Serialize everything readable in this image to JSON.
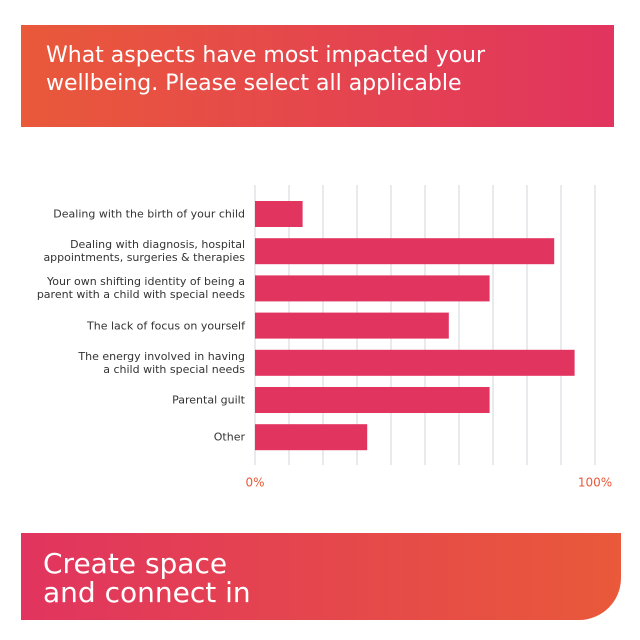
{
  "header": {
    "title": "What aspects have most impacted your\nwellbeing. Please select all applicable"
  },
  "chart_data": {
    "type": "hbar",
    "categories": [
      "Dealing with the birth of your child",
      "Dealing with diagnosis, hospital\nappointments, surgeries & therapies",
      "Your own shifting identity of being a\nparent with a child with special needs",
      "The lack of focus on yourself",
      "The energy involved in having\na child with special needs",
      "Parental guilt",
      "Other"
    ],
    "values": [
      14,
      88,
      69,
      57,
      94,
      69,
      33
    ],
    "color": "#e1345f",
    "xlim": [
      0,
      100
    ],
    "xticks": [
      {
        "value": 0,
        "label": "0%"
      },
      {
        "value": 100,
        "label": "100%"
      }
    ],
    "gridlines": [
      0,
      10,
      20,
      30,
      40,
      50,
      60,
      70,
      80,
      90,
      100
    ],
    "grid": true
  },
  "footer": {
    "title": "Create space\nand connect in"
  }
}
